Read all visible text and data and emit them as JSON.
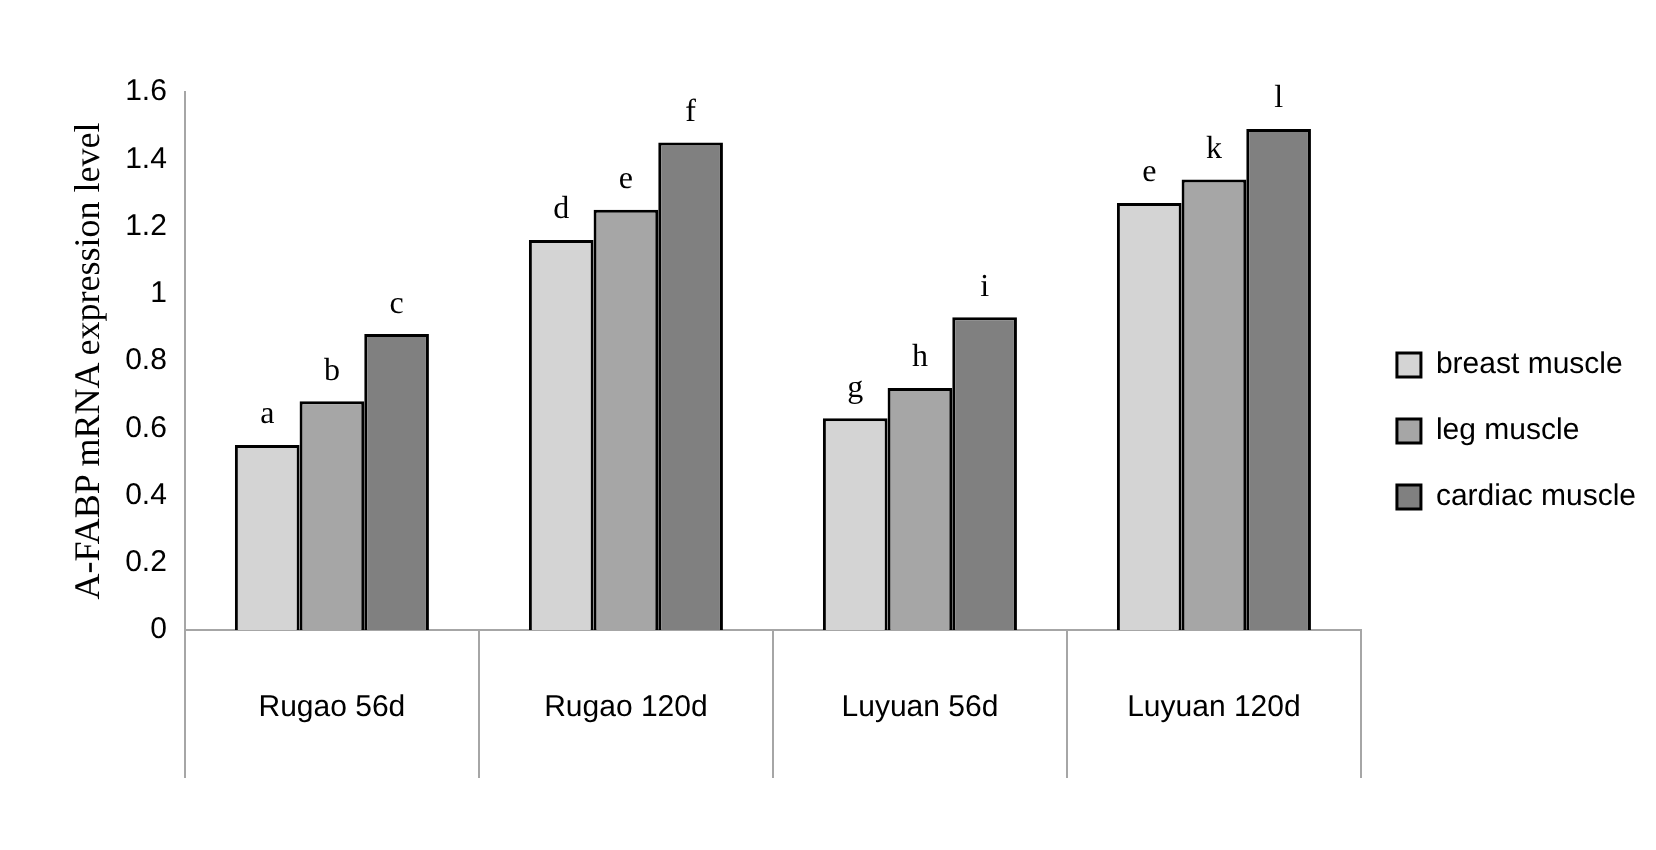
{
  "chart_data": {
    "type": "bar",
    "ylabel": "A-FABP mRNA expression level",
    "categories": [
      "Rugao 56d",
      "Rugao 120d",
      "Luyuan 56d",
      "Luyuan 120d"
    ],
    "series": [
      {
        "name": "breast muscle",
        "color": "#d4d4d4",
        "values": [
          0.55,
          1.16,
          0.63,
          1.27
        ],
        "value_labels": [
          "a",
          "d",
          "g",
          "e"
        ]
      },
      {
        "name": "leg muscle",
        "color": "#a6a6a6",
        "values": [
          0.68,
          1.25,
          0.72,
          1.34
        ],
        "value_labels": [
          "b",
          "e",
          "h",
          "k"
        ]
      },
      {
        "name": "cardiac muscle",
        "color": "#808080",
        "values": [
          0.88,
          1.45,
          0.93,
          1.49
        ],
        "value_labels": [
          "c",
          "f",
          "i",
          "l"
        ]
      }
    ],
    "ylim": [
      0,
      1.6
    ],
    "yticks": [
      0,
      0.2,
      0.4,
      0.6,
      0.8,
      1,
      1.2,
      1.4,
      1.6
    ],
    "grid": false,
    "legend": "right"
  }
}
